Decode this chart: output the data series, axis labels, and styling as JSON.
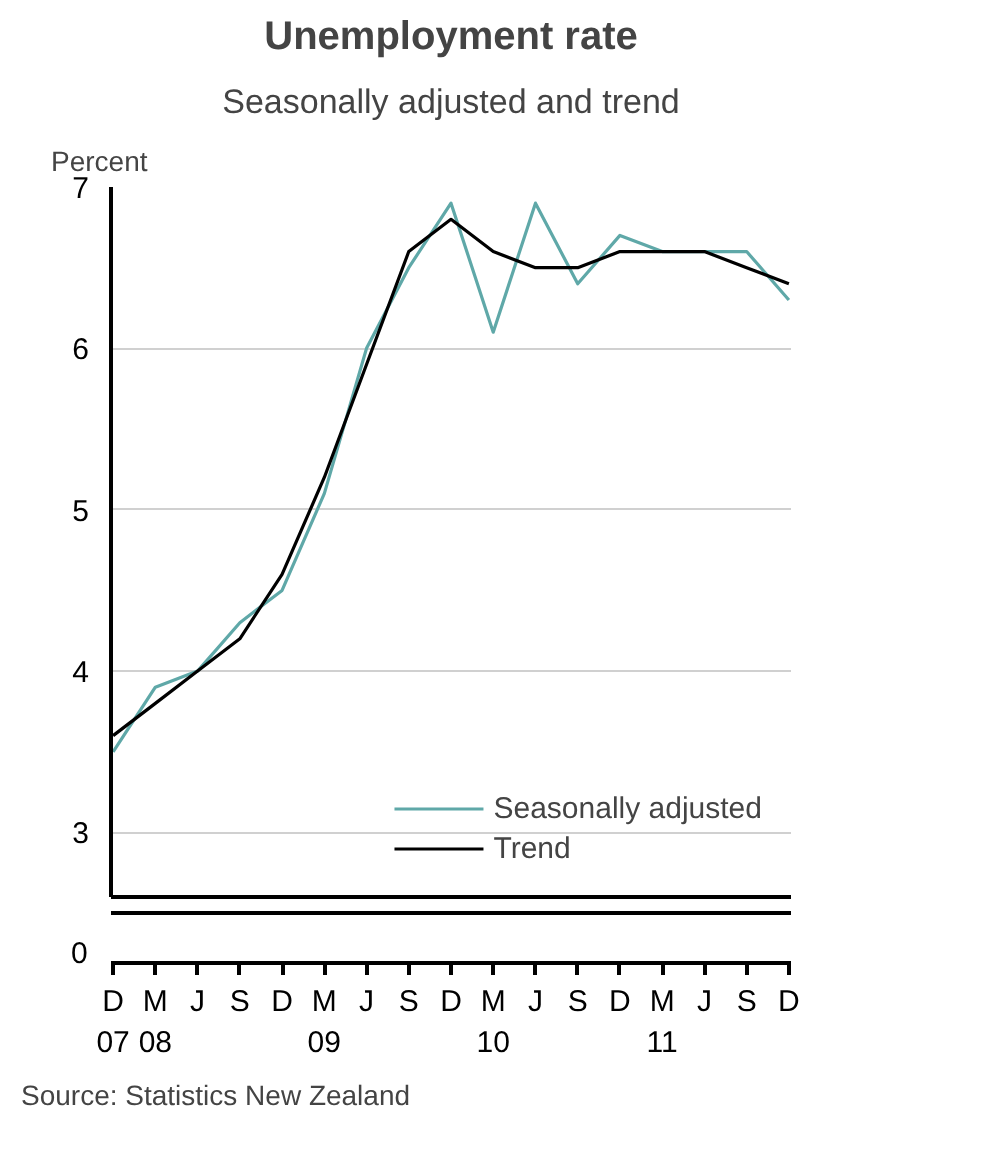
{
  "chart_data": {
    "type": "line",
    "title": "Unemployment rate",
    "subtitle": "Seasonally adjusted and trend",
    "ylabel": "Percent",
    "categories": [
      "D\n07",
      "M\n08",
      "J",
      "S",
      "D",
      "M\n09",
      "J",
      "S",
      "D",
      "M\n10",
      "J",
      "S",
      "D",
      "M\n11",
      "J",
      "S",
      "D"
    ],
    "series": [
      {
        "name": "Seasonally adjusted",
        "color": "#5fa8a8",
        "values": [
          3.5,
          3.9,
          4.0,
          4.3,
          4.5,
          5.1,
          6.0,
          6.5,
          6.9,
          6.1,
          6.9,
          6.4,
          6.7,
          6.6,
          6.6,
          6.6,
          6.3
        ]
      },
      {
        "name": "Trend",
        "color": "#000000",
        "values": [
          3.6,
          3.8,
          4.0,
          4.2,
          4.6,
          5.2,
          5.9,
          6.6,
          6.8,
          6.6,
          6.5,
          6.5,
          6.6,
          6.6,
          6.6,
          6.5,
          6.4
        ]
      }
    ],
    "ylim": [
      2.6,
      7
    ],
    "yticks": [
      3,
      4,
      5,
      6,
      7
    ],
    "grid": "y",
    "legend": "bottom right",
    "annotations": [
      "0",
      "Source: Statistics New Zealand"
    ]
  }
}
